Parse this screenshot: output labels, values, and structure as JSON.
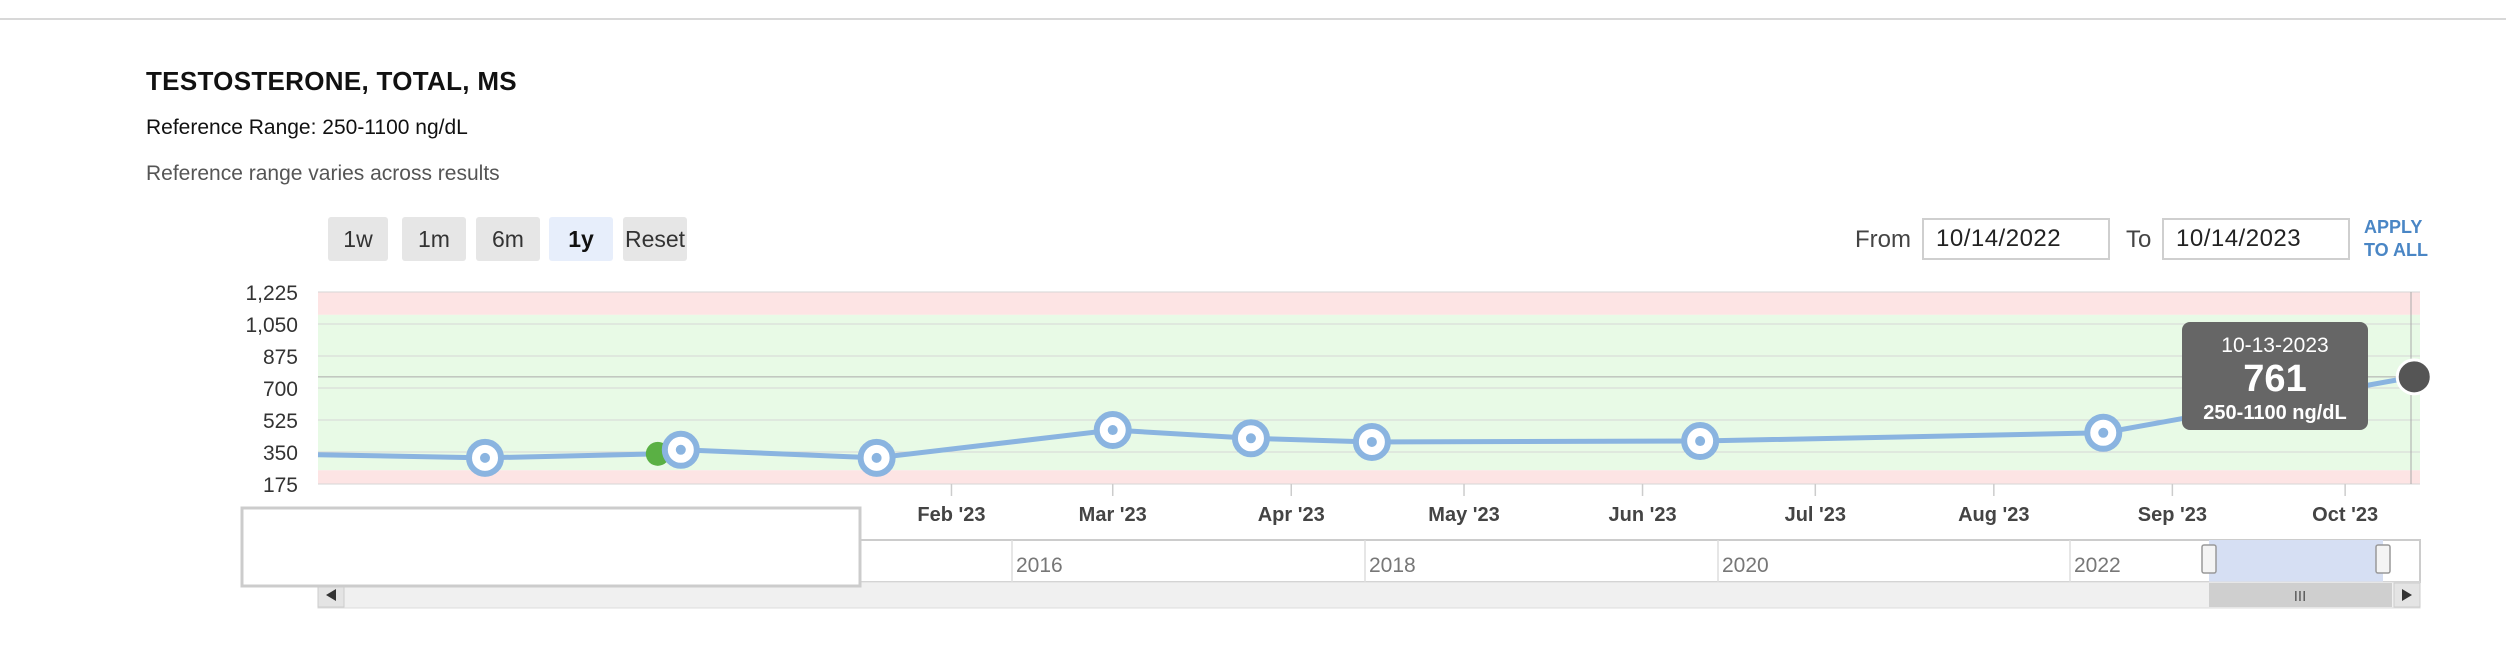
{
  "header": {
    "title": "TESTOSTERONE, TOTAL, MS",
    "reference_range": "Reference Range: 250-1100 ng/dL",
    "note": "Reference range varies across results"
  },
  "range_buttons": [
    {
      "label": "1w",
      "active": false
    },
    {
      "label": "1m",
      "active": false
    },
    {
      "label": "6m",
      "active": false
    },
    {
      "label": "1y",
      "active": true
    },
    {
      "label": "Reset",
      "active": false
    }
  ],
  "date_range": {
    "from_label": "From",
    "from_value": "10/14/2022",
    "to_label": "To",
    "to_value": "10/14/2023",
    "apply_label_line1": "APPLY",
    "apply_label_line2": "TO ALL"
  },
  "tooltip": {
    "date": "10-13-2023",
    "value": "761",
    "range": "250-1100 ng/dL"
  },
  "navigator": {
    "year_labels": [
      "2016",
      "2018",
      "2020",
      "2022"
    ],
    "scrollbar_grip": "III"
  },
  "colors": {
    "line": "#8ab4e0",
    "normal_band": "#e8fae6",
    "out_of_range_band": "#fde4e4",
    "tooltip_bg": "#666666",
    "highlight_point": "#5ab044",
    "last_point": "#555555"
  },
  "chart_data": {
    "type": "line",
    "title": "TESTOSTERONE, TOTAL, MS",
    "unit": "ng/dL",
    "y_ticks": [
      "1,225",
      "1,050",
      "875",
      "700",
      "525",
      "350",
      "175"
    ],
    "ylim": [
      175,
      1225
    ],
    "x_ticks": [
      "Feb '23",
      "Mar '23",
      "Apr '23",
      "May '23",
      "Jun '23",
      "Jul '23",
      "Aug '23",
      "Sep '23",
      "Oct '23"
    ],
    "xlim": [
      "2022-10-14",
      "2023-10-14"
    ],
    "reference_range": [
      250,
      1100
    ],
    "grid": true,
    "series": [
      {
        "values": [
          {
            "x": "2022-10-14",
            "y": 335
          },
          {
            "x": "2022-11-12",
            "y": 318
          },
          {
            "x": "2022-12-12",
            "y": 340
          },
          {
            "x": "2022-12-16",
            "y": 362
          },
          {
            "x": "2023-01-19",
            "y": 318
          },
          {
            "x": "2023-03-01",
            "y": 470
          },
          {
            "x": "2023-03-25",
            "y": 425
          },
          {
            "x": "2023-04-15",
            "y": 405
          },
          {
            "x": "2023-06-11",
            "y": 410
          },
          {
            "x": "2023-08-20",
            "y": 455
          },
          {
            "x": "2023-10-13",
            "y": 761
          }
        ]
      }
    ]
  }
}
